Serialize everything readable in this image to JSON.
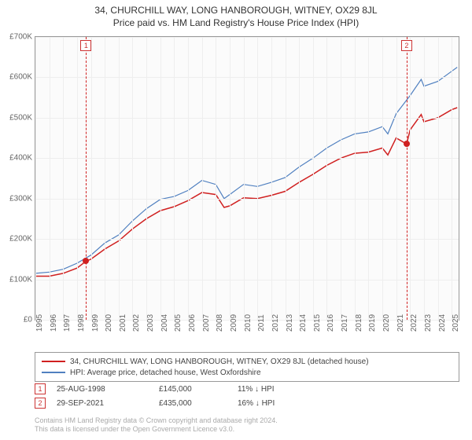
{
  "title": "34, CHURCHILL WAY, LONG HANBOROUGH, WITNEY, OX29 8JL",
  "subtitle": "Price paid vs. HM Land Registry's House Price Index (HPI)",
  "chart": {
    "type": "line",
    "background_color": "#fbfbfb",
    "grid_color": "#eeeeee",
    "border_color": "#999999",
    "xlim": [
      1995,
      2025.5
    ],
    "ylim": [
      0,
      700000
    ],
    "y_ticks": [
      0,
      100000,
      200000,
      300000,
      400000,
      500000,
      600000,
      700000
    ],
    "y_tick_labels": [
      "£0",
      "£100K",
      "£200K",
      "£300K",
      "£400K",
      "£500K",
      "£600K",
      "£700K"
    ],
    "x_ticks": [
      1995,
      1996,
      1997,
      1998,
      1999,
      2000,
      2001,
      2002,
      2003,
      2004,
      2005,
      2006,
      2007,
      2008,
      2009,
      2010,
      2011,
      2012,
      2013,
      2014,
      2015,
      2016,
      2017,
      2018,
      2019,
      2020,
      2021,
      2022,
      2023,
      2024,
      2025
    ],
    "x_tick_labels": [
      "1995",
      "1996",
      "1997",
      "1998",
      "1999",
      "2000",
      "2001",
      "2002",
      "2003",
      "2004",
      "2005",
      "2006",
      "2007",
      "2008",
      "2009",
      "2010",
      "2011",
      "2012",
      "2013",
      "2014",
      "2015",
      "2016",
      "2017",
      "2018",
      "2019",
      "2020",
      "2021",
      "2022",
      "2023",
      "2024",
      "2025"
    ],
    "series": [
      {
        "name": "34, CHURCHILL WAY, LONG HANBOROUGH, WITNEY, OX29 8JL (detached house)",
        "color": "#d02020",
        "line_width": 1.5,
        "data": [
          [
            1995,
            108000
          ],
          [
            1996,
            108000
          ],
          [
            1997,
            115000
          ],
          [
            1998,
            128000
          ],
          [
            1998.65,
            145000
          ],
          [
            1999,
            150000
          ],
          [
            2000,
            175000
          ],
          [
            2001,
            195000
          ],
          [
            2002,
            225000
          ],
          [
            2003,
            250000
          ],
          [
            2004,
            270000
          ],
          [
            2005,
            280000
          ],
          [
            2006,
            295000
          ],
          [
            2007,
            315000
          ],
          [
            2008,
            310000
          ],
          [
            2008.6,
            278000
          ],
          [
            2009,
            282000
          ],
          [
            2010,
            302000
          ],
          [
            2011,
            300000
          ],
          [
            2012,
            308000
          ],
          [
            2013,
            318000
          ],
          [
            2014,
            340000
          ],
          [
            2015,
            360000
          ],
          [
            2016,
            382000
          ],
          [
            2017,
            400000
          ],
          [
            2018,
            412000
          ],
          [
            2019,
            415000
          ],
          [
            2020,
            425000
          ],
          [
            2020.4,
            408000
          ],
          [
            2021,
            450000
          ],
          [
            2021.75,
            435000
          ],
          [
            2022,
            470000
          ],
          [
            2022.8,
            508000
          ],
          [
            2023,
            490000
          ],
          [
            2024,
            500000
          ],
          [
            2025,
            520000
          ],
          [
            2025.4,
            525000
          ]
        ]
      },
      {
        "name": "HPI: Average price, detached house, West Oxfordshire",
        "color": "#5080c0",
        "line_width": 1.2,
        "data": [
          [
            1995,
            115000
          ],
          [
            1996,
            118000
          ],
          [
            1997,
            125000
          ],
          [
            1998,
            140000
          ],
          [
            1999,
            160000
          ],
          [
            2000,
            190000
          ],
          [
            2001,
            210000
          ],
          [
            2002,
            245000
          ],
          [
            2003,
            275000
          ],
          [
            2004,
            298000
          ],
          [
            2005,
            305000
          ],
          [
            2006,
            320000
          ],
          [
            2007,
            345000
          ],
          [
            2008,
            335000
          ],
          [
            2008.6,
            300000
          ],
          [
            2009,
            310000
          ],
          [
            2010,
            335000
          ],
          [
            2011,
            330000
          ],
          [
            2012,
            340000
          ],
          [
            2013,
            352000
          ],
          [
            2014,
            378000
          ],
          [
            2015,
            400000
          ],
          [
            2016,
            425000
          ],
          [
            2017,
            445000
          ],
          [
            2018,
            460000
          ],
          [
            2019,
            465000
          ],
          [
            2020,
            478000
          ],
          [
            2020.4,
            460000
          ],
          [
            2021,
            510000
          ],
          [
            2022,
            555000
          ],
          [
            2022.8,
            595000
          ],
          [
            2023,
            578000
          ],
          [
            2024,
            590000
          ],
          [
            2025,
            615000
          ],
          [
            2025.4,
            625000
          ]
        ]
      }
    ],
    "markers": [
      {
        "id": "1",
        "x": 1998.65,
        "y": 145000,
        "color": "#d02020",
        "line_color": "#d02020"
      },
      {
        "id": "2",
        "x": 2021.75,
        "y": 435000,
        "color": "#d02020",
        "line_color": "#d02020"
      }
    ]
  },
  "legend": {
    "items": [
      {
        "color": "#d02020",
        "label": "34, CHURCHILL WAY, LONG HANBOROUGH, WITNEY, OX29 8JL (detached house)"
      },
      {
        "color": "#5080c0",
        "label": "HPI: Average price, detached house, West Oxfordshire"
      }
    ]
  },
  "events": [
    {
      "id": "1",
      "date": "25-AUG-1998",
      "price": "£145,000",
      "diff": "11% ↓ HPI"
    },
    {
      "id": "2",
      "date": "29-SEP-2021",
      "price": "£435,000",
      "diff": "16% ↓ HPI"
    }
  ],
  "footer_line1": "Contains HM Land Registry data © Crown copyright and database right 2024.",
  "footer_line2": "This data is licensed under the Open Government Licence v3.0."
}
